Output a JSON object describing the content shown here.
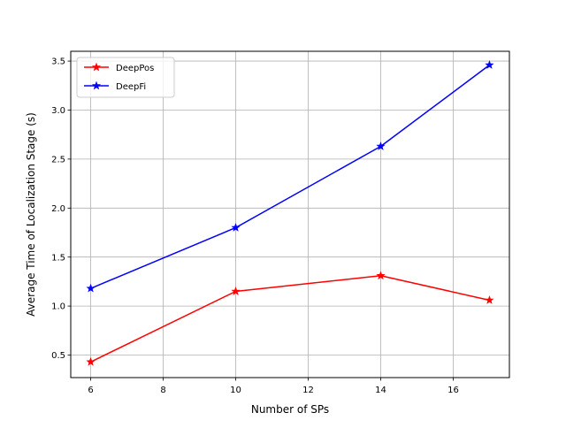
{
  "chart_data": {
    "type": "line",
    "title": "",
    "xlabel": "Number of SPs",
    "ylabel": "Average Time of Localization Stage (s)",
    "xlim": [
      5.45,
      17.55
    ],
    "ylim": [
      0.27,
      3.6
    ],
    "xticks": [
      6,
      8,
      10,
      12,
      14,
      16
    ],
    "yticks": [
      0.5,
      1.0,
      1.5,
      2.0,
      2.5,
      3.0,
      3.5
    ],
    "xtick_labels": [
      "6",
      "8",
      "10",
      "12",
      "14",
      "16"
    ],
    "ytick_labels": [
      "0.5",
      "1.0",
      "1.5",
      "2.0",
      "2.5",
      "3.0",
      "3.5"
    ],
    "grid": true,
    "legend_position": "top-left",
    "marker": "star",
    "x": [
      6,
      10,
      14,
      17
    ],
    "series": [
      {
        "name": "DeepPos",
        "color": "#ff0000",
        "values": [
          0.43,
          1.15,
          1.31,
          1.06
        ]
      },
      {
        "name": "DeepFi",
        "color": "#0000ff",
        "values": [
          1.18,
          1.8,
          2.63,
          3.46
        ]
      }
    ]
  }
}
